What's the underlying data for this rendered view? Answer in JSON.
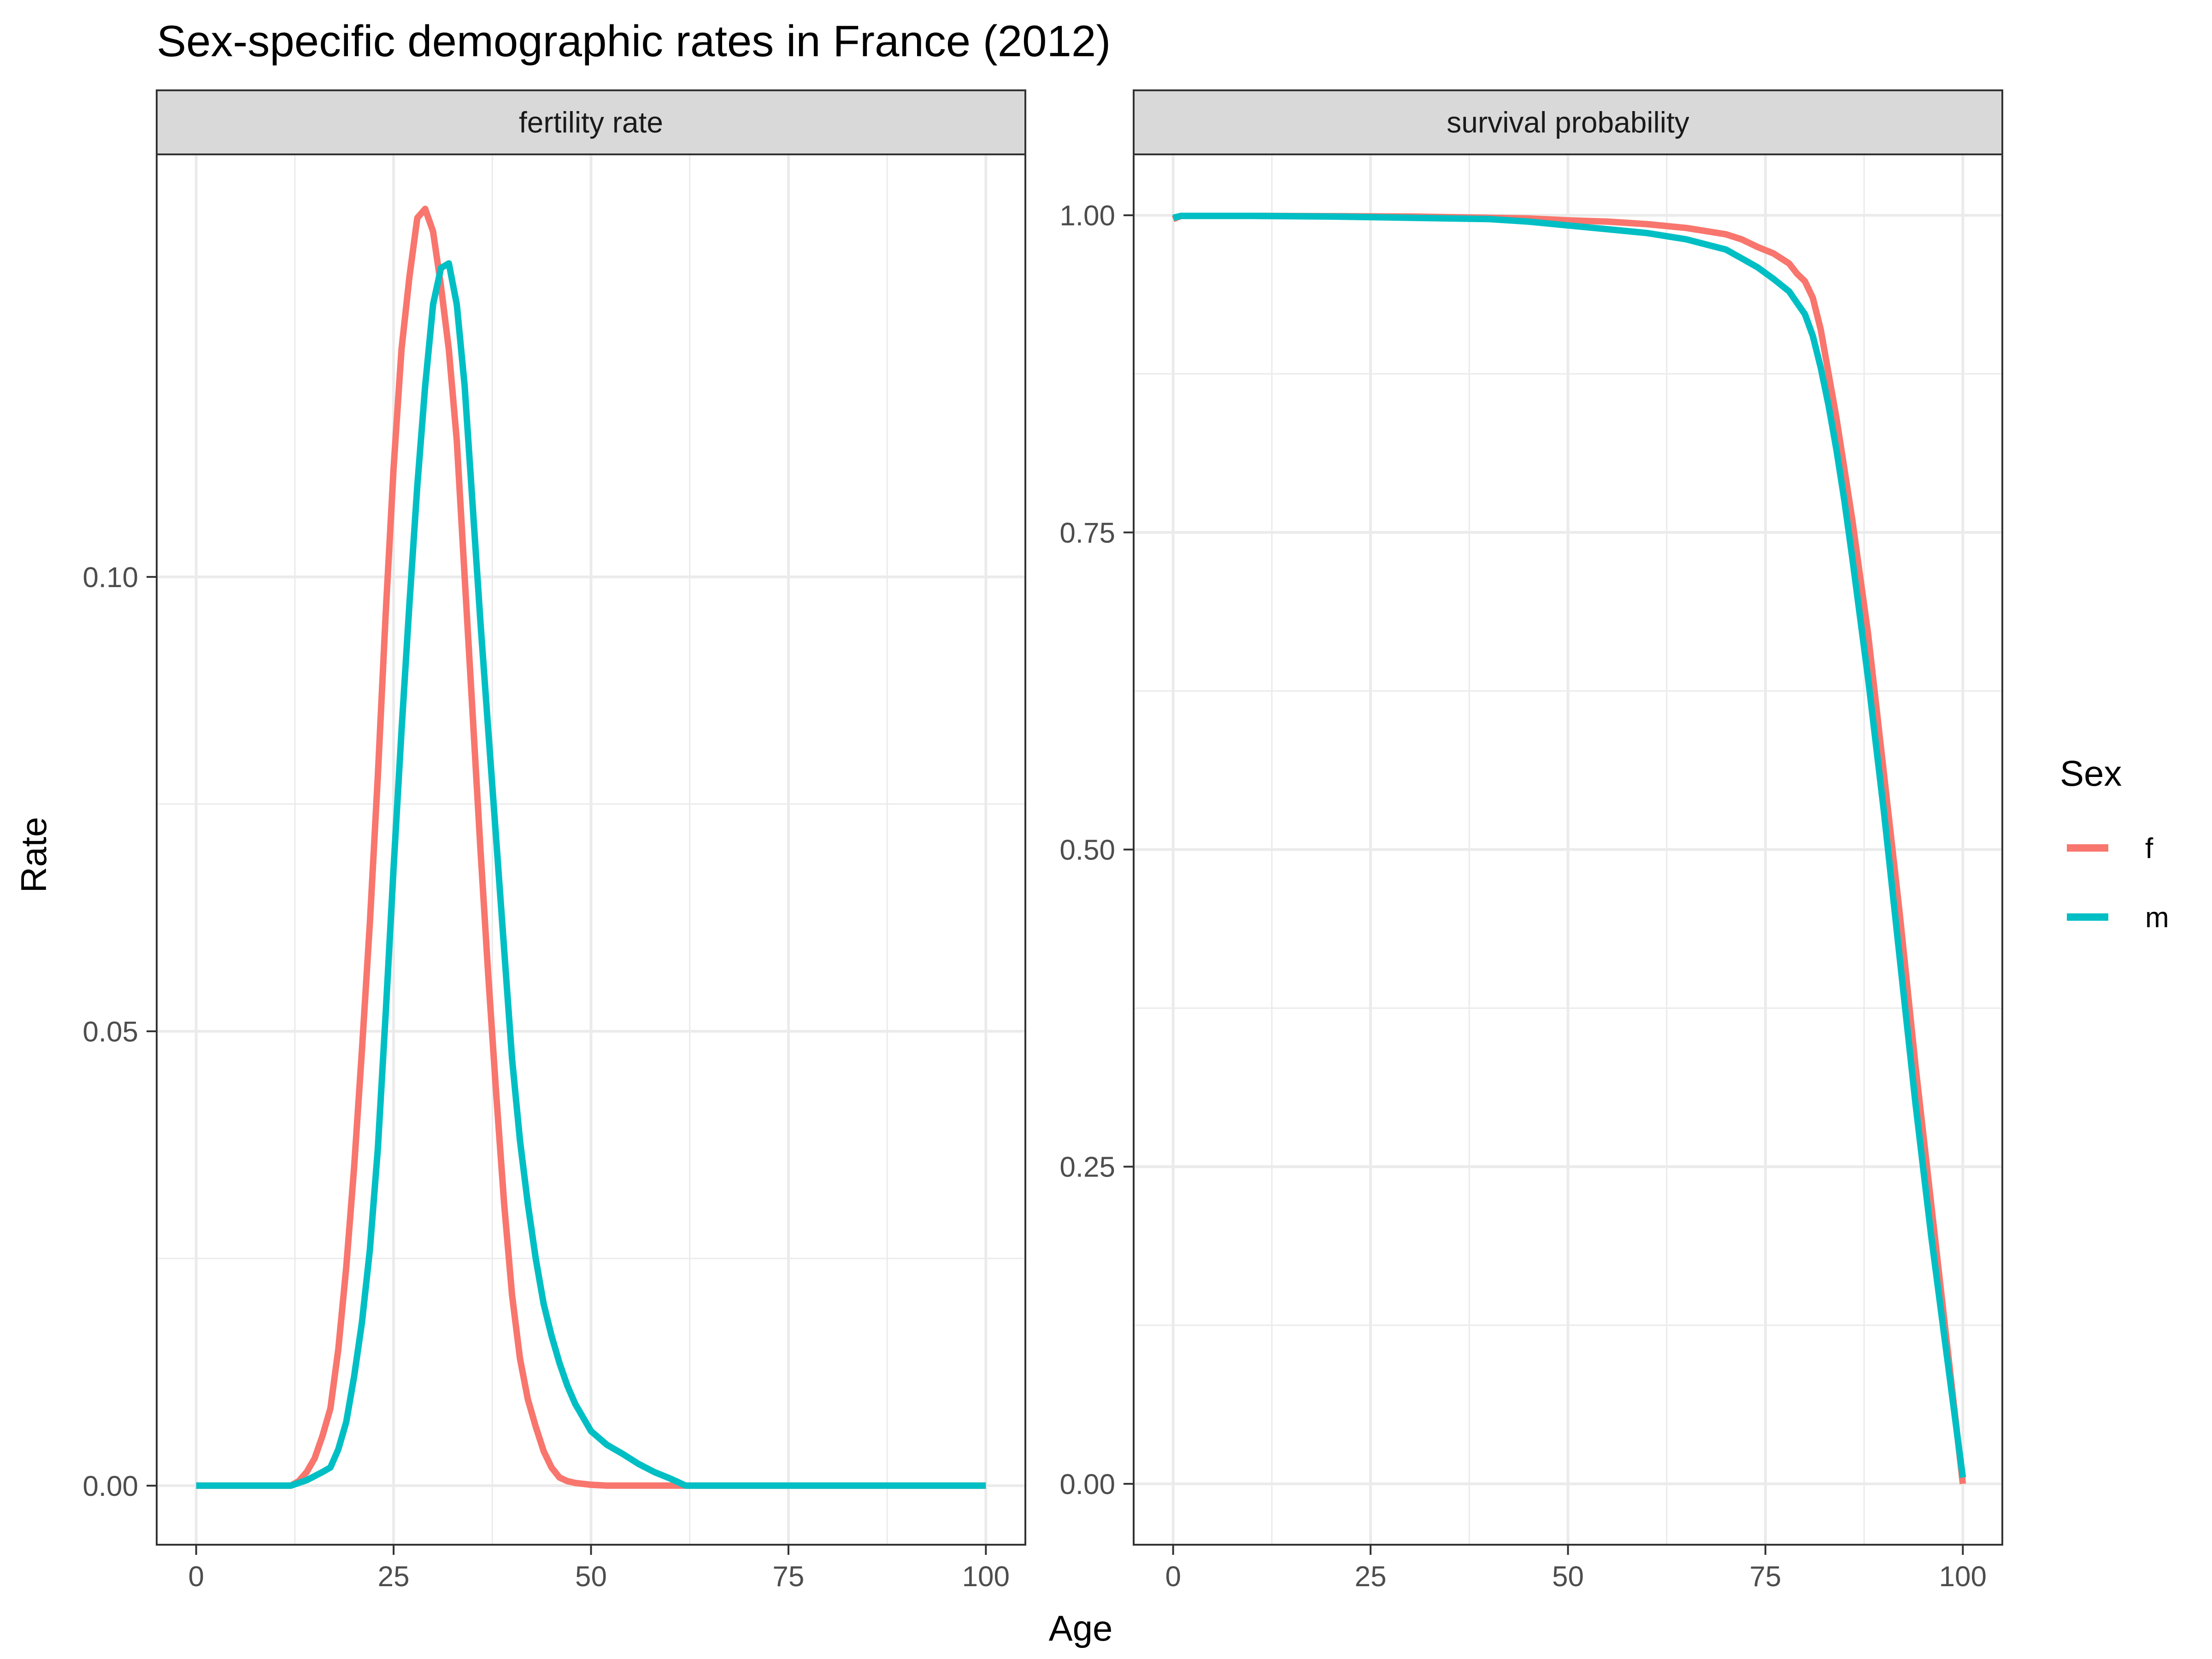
{
  "title": "Sex-specific demographic rates in France (2012)",
  "xlabel": "Age",
  "ylabel": "Rate",
  "legend": {
    "title": "Sex",
    "placement": "right",
    "entries": [
      {
        "label": "f",
        "color": "#F8766D"
      },
      {
        "label": "m",
        "color": "#00BFC4"
      }
    ]
  },
  "colors": {
    "f": "#F8766D",
    "m": "#00BFC4",
    "strip_bg": "#d9d9d9",
    "grid": "#ebebeb"
  },
  "chart_data": [
    {
      "type": "line",
      "panel": "fertility rate",
      "xlim": [
        -5,
        105
      ],
      "ylim": [
        -0.0065,
        0.1465
      ],
      "xticks": [
        0,
        25,
        50,
        75,
        100
      ],
      "yticks": [
        0,
        0.05,
        0.1
      ],
      "ytick_labels": [
        "0.00",
        "0.05",
        "0.10"
      ],
      "series": [
        {
          "name": "f",
          "color": "#F8766D",
          "x": [
            0,
            12,
            13,
            14,
            15,
            16,
            17,
            18,
            19,
            20,
            21,
            22,
            23,
            24,
            25,
            26,
            27,
            28,
            29,
            30,
            31,
            32,
            33,
            34,
            35,
            36,
            37,
            38,
            39,
            40,
            41,
            42,
            43,
            44,
            45,
            46,
            47,
            48,
            49,
            50,
            52,
            55,
            60,
            100
          ],
          "y": [
            0,
            0,
            0.0005,
            0.0015,
            0.003,
            0.0055,
            0.0085,
            0.015,
            0.024,
            0.035,
            0.048,
            0.062,
            0.078,
            0.096,
            0.112,
            0.125,
            0.133,
            0.1395,
            0.1405,
            0.138,
            0.132,
            0.125,
            0.115,
            0.1,
            0.085,
            0.07,
            0.056,
            0.043,
            0.031,
            0.021,
            0.014,
            0.0095,
            0.0065,
            0.0038,
            0.002,
            0.0009,
            0.0005,
            0.0003,
            0.0002,
            0.0001,
            0,
            0,
            0,
            0
          ]
        },
        {
          "name": "m",
          "color": "#00BFC4",
          "x": [
            0,
            12,
            14,
            16,
            17,
            18,
            19,
            20,
            21,
            22,
            23,
            24,
            25,
            26,
            27,
            28,
            29,
            30,
            31,
            32,
            33,
            34,
            35,
            36,
            37,
            38,
            39,
            40,
            41,
            42,
            43,
            44,
            45,
            46,
            47,
            48,
            50,
            52,
            54,
            56,
            58,
            60,
            62,
            100
          ],
          "y": [
            0,
            0,
            0.0006,
            0.0015,
            0.002,
            0.004,
            0.007,
            0.012,
            0.018,
            0.026,
            0.037,
            0.052,
            0.068,
            0.083,
            0.097,
            0.11,
            0.121,
            0.13,
            0.134,
            0.1345,
            0.13,
            0.121,
            0.108,
            0.095,
            0.083,
            0.071,
            0.059,
            0.047,
            0.038,
            0.031,
            0.025,
            0.02,
            0.0165,
            0.0135,
            0.011,
            0.009,
            0.006,
            0.0045,
            0.0035,
            0.0024,
            0.0015,
            0.0008,
            0,
            0
          ]
        }
      ]
    },
    {
      "type": "line",
      "panel": "survival probability",
      "xlim": [
        -5,
        105
      ],
      "ylim": [
        -0.048,
        1.048
      ],
      "xticks": [
        0,
        25,
        50,
        75,
        100
      ],
      "yticks": [
        0,
        0.25,
        0.5,
        0.75,
        1
      ],
      "ytick_labels": [
        "0.00",
        "0.25",
        "0.50",
        "0.75",
        "1.00"
      ],
      "series": [
        {
          "name": "f",
          "color": "#F8766D",
          "x": [
            0,
            1,
            10,
            20,
            30,
            40,
            45,
            50,
            55,
            60,
            65,
            70,
            72,
            74,
            76,
            78,
            79,
            80,
            81,
            82,
            83,
            84,
            85,
            86,
            88,
            90,
            92,
            94,
            96,
            98,
            100
          ],
          "y": [
            0.997,
            0.9995,
            0.9995,
            0.9993,
            0.999,
            0.998,
            0.9975,
            0.996,
            0.995,
            0.993,
            0.99,
            0.985,
            0.981,
            0.975,
            0.97,
            0.962,
            0.954,
            0.948,
            0.935,
            0.91,
            0.875,
            0.84,
            0.8,
            0.76,
            0.67,
            0.56,
            0.45,
            0.33,
            0.22,
            0.11,
            0
          ]
        },
        {
          "name": "m",
          "color": "#00BFC4",
          "x": [
            0,
            1,
            10,
            20,
            30,
            40,
            45,
            50,
            55,
            60,
            65,
            70,
            72,
            74,
            76,
            78,
            79,
            80,
            81,
            82,
            83,
            84,
            85,
            86,
            88,
            90,
            92,
            94,
            96,
            98,
            100
          ],
          "y": [
            0.998,
            0.9995,
            0.9995,
            0.999,
            0.998,
            0.997,
            0.995,
            0.992,
            0.989,
            0.986,
            0.981,
            0.973,
            0.966,
            0.959,
            0.95,
            0.94,
            0.931,
            0.922,
            0.905,
            0.88,
            0.85,
            0.815,
            0.775,
            0.73,
            0.635,
            0.53,
            0.415,
            0.3,
            0.195,
            0.1,
            0.005
          ]
        }
      ]
    }
  ]
}
